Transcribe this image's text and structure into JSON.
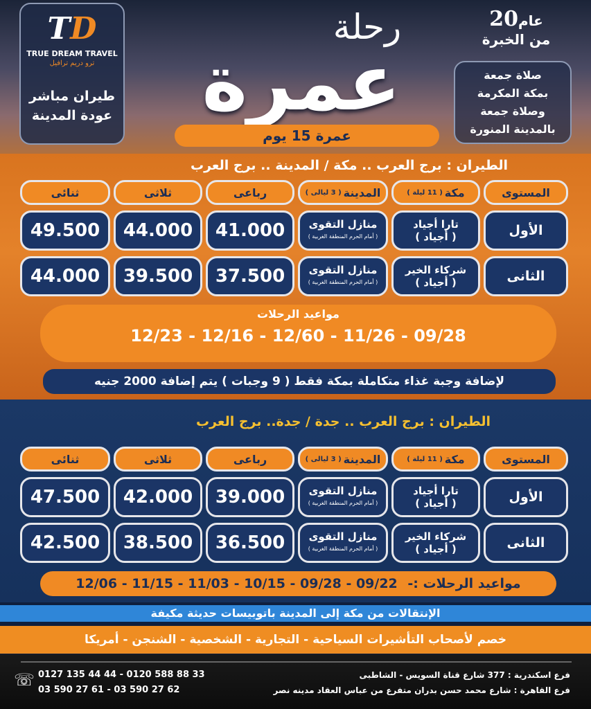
{
  "header": {
    "logo": {
      "mark": "TD",
      "name_en": "TRUE DREAM TRAVEL",
      "name_ar": "ترو دريم ترافيل"
    },
    "logo_box_lines": [
      "طيران مباشر",
      "عودة المدينة"
    ],
    "experience": {
      "number": "20",
      "unit": "عام",
      "text": "من الخبرة"
    },
    "friday_lines": [
      "صلاة جمعة",
      "بمكة المكرمة",
      "وصلاة جمعة",
      "بالمدينة المنورة"
    ],
    "title_small": "رحلة",
    "title_big": "عمرة",
    "duration": "عمرة 15 يوم"
  },
  "package1": {
    "flight": "الطيران : برج العرب .. مكة / المدينة .. برج العرب",
    "headers": [
      {
        "main": "المستوى",
        "note": ""
      },
      {
        "main": "مكة",
        "note": "( 11 ليلة )"
      },
      {
        "main": "المدينة",
        "note": "( 3 ليالى )"
      },
      {
        "main": "رباعى",
        "note": ""
      },
      {
        "main": "ثلاثى",
        "note": ""
      },
      {
        "main": "ثنائى",
        "note": ""
      }
    ],
    "rows": [
      {
        "level": "الأول",
        "makkah": "تارا أجياد",
        "makkah_note": "( أجياد )",
        "madinah": "منازل التقوى",
        "madinah_note": "( أمام الحرم المنطقة الغربية )",
        "quad": "41.000",
        "triple": "44.000",
        "double": "49.500"
      },
      {
        "level": "الثانى",
        "makkah": "شركاء الخير",
        "makkah_note": "( أجياد )",
        "madinah": "منازل التقوى",
        "madinah_note": "( أمام الحرم المنطقة الغربية )",
        "quad": "37.500",
        "triple": "39.500",
        "double": "44.000"
      }
    ],
    "dates_label": "مواعيد الرحلات",
    "dates": "12/23 - 12/16 - 12/60 - 11/26 - 09/28",
    "meal_note": "لإضافة وجبة غذاء متكاملة بمكة فقط ( 9 وجبات ) يتم إضافة 2000 جنيه"
  },
  "package2": {
    "flight": "الطيران : برج العرب .. جدة / جدة.. برج العرب",
    "headers": [
      {
        "main": "المستوى",
        "note": ""
      },
      {
        "main": "مكة",
        "note": "( 11 ليلة )"
      },
      {
        "main": "المدينة",
        "note": "( 3 ليالى )"
      },
      {
        "main": "رباعى",
        "note": ""
      },
      {
        "main": "ثلاثى",
        "note": ""
      },
      {
        "main": "ثنائى",
        "note": ""
      }
    ],
    "rows": [
      {
        "level": "الأول",
        "makkah": "تارا أجياد",
        "makkah_note": "( أجياد )",
        "madinah": "منازل التقوى",
        "madinah_note": "( أمام الحرم المنطقة الغربية )",
        "quad": "39.000",
        "triple": "42.000",
        "double": "47.500"
      },
      {
        "level": "الثانى",
        "makkah": "شركاء الخير",
        "makkah_note": "( أجياد )",
        "madinah": "منازل التقوى",
        "madinah_note": "( أمام الحرم المنطقة الغربية )",
        "quad": "36.500",
        "triple": "38.500",
        "double": "42.500"
      }
    ],
    "dates_label": "مواعيد الرحلات :-",
    "dates": "12/06 - 11/15 - 11/03 - 10/15 - 09/28 - 09/22"
  },
  "transfer_note": "الإنتقالات من مكة إلى المدينة باتوبيسات حديثة مكيفة",
  "visa_note": "خصم لأصحاب التأشيرات السياحية - التجارية - الشخصية - الشنجن - أمريكا",
  "footer": {
    "branches": [
      "فرع اسكندرية : 377 شارع قناة السويس - الشاطبى",
      "فرع القاهرة : شارع محمد حسن بدران متفرع من عباس العقاد مدينه نصر"
    ],
    "phones": [
      "0127 135 44 44 - 0120 588 88 33",
      "03 590 27 61 - 03 590 27 62"
    ],
    "phone_icon": "phone-icon"
  },
  "colors": {
    "orange": "#f08a24",
    "navy": "#1b3566",
    "blue_bar": "#2f86d8"
  }
}
